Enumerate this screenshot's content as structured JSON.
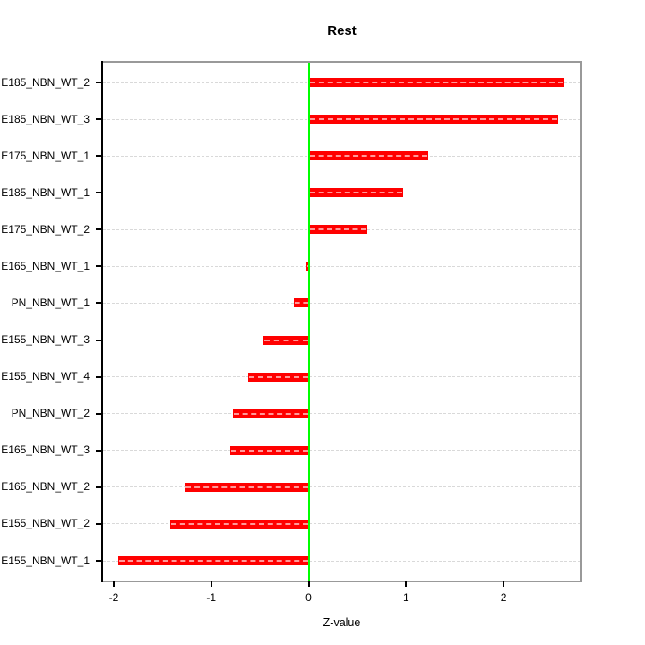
{
  "figure": {
    "title": "Rest",
    "xlabel": "Z-value"
  },
  "chart_data": {
    "type": "bar",
    "orientation": "horizontal",
    "title": "Rest",
    "xlabel": "Z-value",
    "ylabel": "",
    "categories": [
      "E185_NBN_WT_2",
      "E185_NBN_WT_3",
      "E175_NBN_WT_1",
      "E185_NBN_WT_1",
      "E175_NBN_WT_2",
      "E165_NBN_WT_1",
      "PN_NBN_WT_1",
      "E155_NBN_WT_3",
      "E155_NBN_WT_4",
      "PN_NBN_WT_2",
      "E165_NBN_WT_3",
      "E165_NBN_WT_2",
      "E155_NBN_WT_2",
      "E155_NBN_WT_1"
    ],
    "values": [
      2.62,
      2.56,
      1.23,
      0.97,
      0.6,
      -0.02,
      -0.15,
      -0.46,
      -0.62,
      -0.78,
      -0.8,
      -1.27,
      -1.42,
      -1.95
    ],
    "xticks": [
      -2,
      -1,
      0,
      1,
      2
    ],
    "xtick_labels": [
      "-2",
      "-1",
      "0",
      "1",
      "2"
    ],
    "xlim": [
      -2.11,
      2.79
    ],
    "zero_reference_line": 0,
    "grid": true,
    "grid_style": "dashed",
    "legend": false,
    "colors": {
      "bar": "#ff0000",
      "bar_dash_overlay": "rgba(255,255,255,0.6)",
      "zero_line": "#00ff00",
      "grid": "#d9d9d9",
      "box_border": "#999999",
      "axis": "#000000",
      "text": "#000000",
      "background": "#ffffff"
    }
  }
}
